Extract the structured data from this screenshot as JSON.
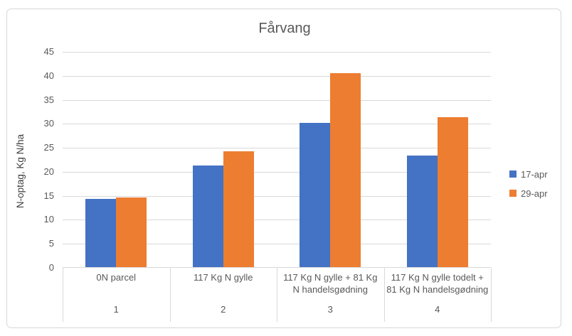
{
  "chart_data": {
    "type": "bar",
    "title": "Fårvang",
    "ylabel": "N-optag, Kg N/ha",
    "xlabel": "",
    "categories": [
      "0N parcel",
      "117 Kg N gylle",
      "117 Kg N gylle + 81 Kg N handelsgødning",
      "117 Kg N gylle todelt + 81 Kg N handelsgødning"
    ],
    "category_numbers": [
      "1",
      "2",
      "3",
      "4"
    ],
    "series": [
      {
        "name": "17-apr",
        "color": "#4472C4",
        "values": [
          14.2,
          21.2,
          30.1,
          23.2
        ]
      },
      {
        "name": "29-apr",
        "color": "#ED7D31",
        "values": [
          14.5,
          24.1,
          40.4,
          31.2
        ]
      }
    ],
    "ylim": [
      0,
      45
    ],
    "ytick_step": 5,
    "yticks": [
      "0",
      "5",
      "10",
      "15",
      "20",
      "25",
      "30",
      "35",
      "40",
      "45"
    ],
    "grid": true,
    "legend_position": "right",
    "gridline_color": "#D9D9D9",
    "text_color": "#595959",
    "axis_title_color": "#404040"
  }
}
